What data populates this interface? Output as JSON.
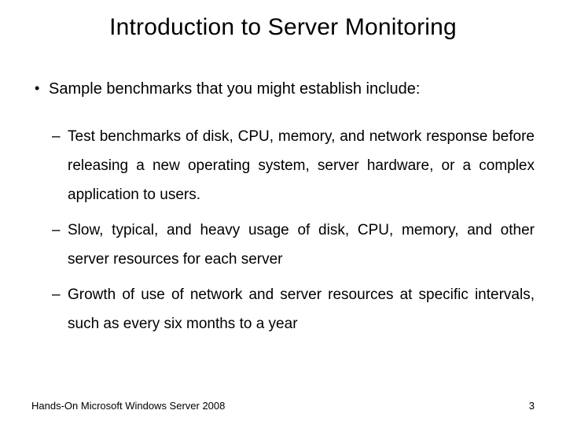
{
  "title": "Introduction to Server Monitoring",
  "bullets": {
    "main": "Sample benchmarks that you might establish include:",
    "sub": [
      "Test benchmarks of disk, CPU, memory, and network response before releasing a new operating system, server hardware, or a complex application to users.",
      "Slow, typical, and heavy usage of disk, CPU, memory, and other server resources for each server",
      "Growth of use of network and server resources at specific intervals, such as every six months to a year"
    ]
  },
  "footer": {
    "source": "Hands-On Microsoft Windows Server 2008",
    "page": "3"
  },
  "colors": {
    "background": "#ffffff",
    "text": "#000000"
  },
  "typography": {
    "title_fontsize": 30,
    "body_fontsize": 20,
    "sub_fontsize": 19,
    "footer_fontsize": 13,
    "font_family": "Arial"
  }
}
